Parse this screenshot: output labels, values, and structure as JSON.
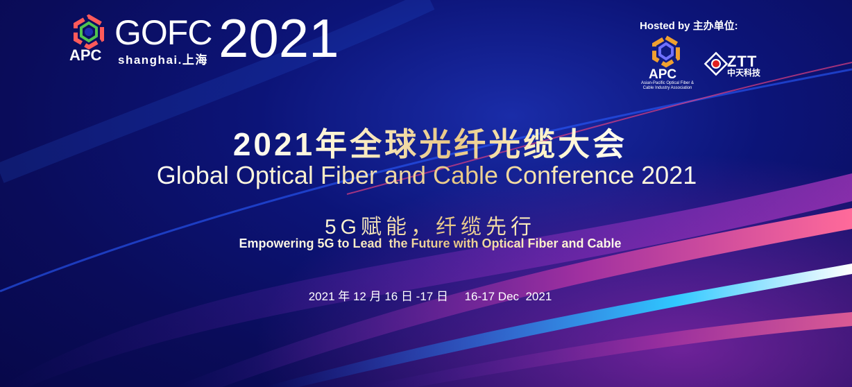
{
  "logo_left": {
    "apc": "APC",
    "gofc": "GOFC",
    "year": "2021",
    "city": "shanghai.上海"
  },
  "hosts": {
    "label": "Hosted by 主办单位:",
    "apc": "APC",
    "apc_full": "Asian-Pacific Optical Fiber & Cable Industry Association",
    "ztt": "ZTT",
    "ztt_cn": "中天科技"
  },
  "title_cn": "2021年全球光纤光缆大会",
  "title_en": "Global Optical Fiber and Cable Conference 2021",
  "slogan_cn": "5G赋能，纤缆先行",
  "slogan_en": "Empowering 5G to Lead  the Future with Optical Fiber and Cable",
  "date": "2021 年 12 月 16 日 -17 日     16-17 Dec  2021",
  "colors": {
    "background": "#0a0f5c",
    "gold": "#e8c784",
    "pink": "#e0508c",
    "cyan": "#2ec8ff"
  }
}
